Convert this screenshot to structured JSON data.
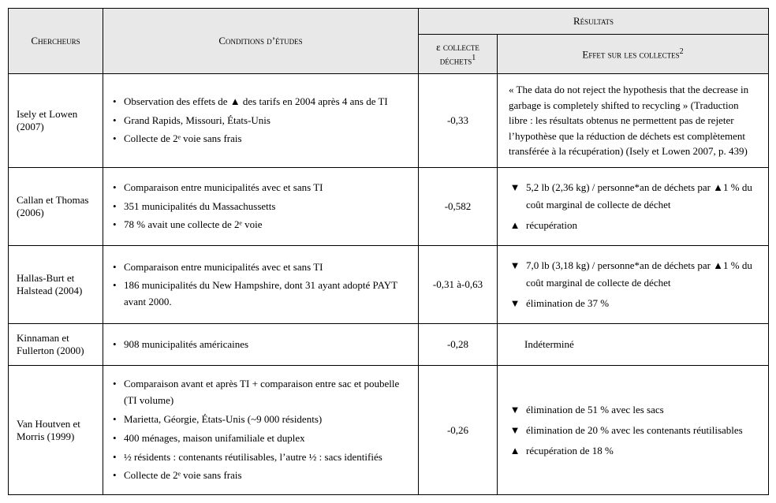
{
  "header": {
    "chercheurs": "Chercheurs",
    "conditions": "Conditions d’études",
    "resultats": "Résultats",
    "epsilon_html": "ε collecte<br>déchets",
    "epsilon_sup": "1",
    "effet": "Effet sur les collectes",
    "effet_sup": "2"
  },
  "rows": [
    {
      "chercheurs": "Isely et Lowen (2007)",
      "conditions": [
        "Observation des effets de ▲ des tarifs en 2004 après 4 ans de TI",
        "Grand Rapids, Missouri, États-Unis",
        "Collecte de 2ᵉ voie sans frais"
      ],
      "epsilon": "-0,33",
      "effets_type": "para",
      "effets_para": "« The data do not reject the hypothesis that the decrease in garbage is completely shifted to recycling » (Traduction libre : les résultats obtenus ne permettent pas de rejeter l’hypothèse que la réduction de déchets est complètement transférée à la récupération) (Isely et Lowen 2007, p. 439)"
    },
    {
      "chercheurs": "Callan et Thomas (2006)",
      "conditions": [
        "Comparaison entre municipalités avec et sans TI",
        "351 municipalités du Massachussetts",
        "78 % avait une collecte de 2ᵉ voie"
      ],
      "epsilon": "-0,582",
      "effets_type": "tri",
      "effets": [
        {
          "dir": "down",
          "text": "5,2 lb (2,36 kg) / personne*an de déchets par ▲1 % du coût marginal de collecte de déchet"
        },
        {
          "dir": "up",
          "text": "récupération"
        }
      ]
    },
    {
      "chercheurs": "Hallas-Burt et Halstead (2004)",
      "conditions": [
        "Comparaison entre municipalités avec et sans TI",
        "186 municipalités du New Hampshire, dont 31 ayant adopté PAYT avant 2000."
      ],
      "epsilon": "-0,31 à-0,63",
      "effets_type": "tri",
      "effets": [
        {
          "dir": "down",
          "text": "7,0 lb (3,18 kg) / personne*an de déchets par ▲1 % du coût marginal de collecte de déchet"
        },
        {
          "dir": "down",
          "text": "élimination de 37 %"
        }
      ]
    },
    {
      "chercheurs": "Kinnaman et Fullerton (2000)",
      "conditions": [
        "908 municipalités américaines"
      ],
      "epsilon": "-0,28",
      "effets_type": "plain",
      "effets_plain": "Indéterminé"
    },
    {
      "chercheurs": "Van Houtven et Morris (1999)",
      "conditions": [
        "Comparaison avant et après TI + comparaison entre sac et poubelle (TI volume)",
        "Marietta, Géorgie, États-Unis (~9 000 résidents)",
        "400 ménages, maison unifamiliale et duplex",
        "½ résidents : contenants réutilisables, l’autre ½ : sacs identifiés",
        "Collecte de 2ᵉ voie sans frais"
      ],
      "epsilon": "-0,26",
      "effets_type": "tri",
      "effets": [
        {
          "dir": "down",
          "text": "élimination de 51 % avec les sacs"
        },
        {
          "dir": "down",
          "text": "élimination de 20 % avec les contenants réutilisables"
        },
        {
          "dir": "up",
          "text": "récupération de 18 %"
        }
      ]
    }
  ]
}
